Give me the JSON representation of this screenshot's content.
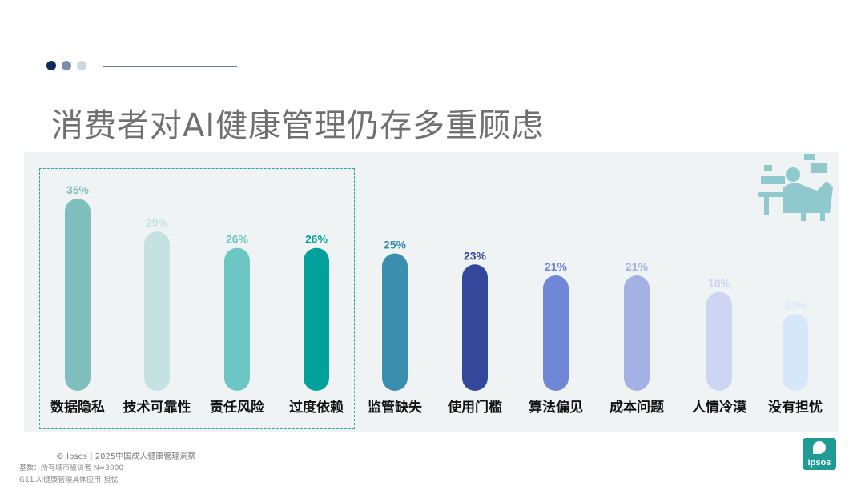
{
  "title": "消费者对AI健康管理仍存多重顾虑",
  "footer": {
    "copyright": "© Ipsos | 2025中国成人健康管理洞察",
    "base": "基数：所有城市被访者  N=3000",
    "question": "G11.AI健康管理具体应用-担忧"
  },
  "logo": {
    "text": "Ipsos"
  },
  "icons": {
    "illustration": "person-at-desk-icon",
    "logo": "ipsos-logo"
  },
  "colors": {
    "dots": [
      "#0d2a5c",
      "#7d8ea9",
      "#cdd5df"
    ],
    "bars": [
      "#7fbfbd",
      "#c5e2e3",
      "#6cc7c4",
      "#00a19b",
      "#3a8fae",
      "#33479b",
      "#7086d6",
      "#a3b1e4",
      "#cdd5f2",
      "#d6e6fb"
    ]
  },
  "chart_data": {
    "type": "bar",
    "categories": [
      "数据隐私",
      "技术可靠性",
      "责任风险",
      "过度依赖",
      "监管缺失",
      "使用门槛",
      "算法偏见",
      "成本问题",
      "人情冷漠",
      "没有担忧"
    ],
    "values": [
      35,
      29,
      26,
      26,
      25,
      23,
      21,
      21,
      18,
      14
    ],
    "value_labels": [
      "35%",
      "29%",
      "26%",
      "26%",
      "25%",
      "23%",
      "21%",
      "21%",
      "18%",
      "14%"
    ],
    "title": "",
    "xlabel": "",
    "ylabel": "",
    "ylim": [
      0,
      35
    ],
    "grid": false,
    "highlighted_categories": [
      "数据隐私",
      "技术可靠性",
      "责任风险",
      "过度依赖"
    ]
  }
}
